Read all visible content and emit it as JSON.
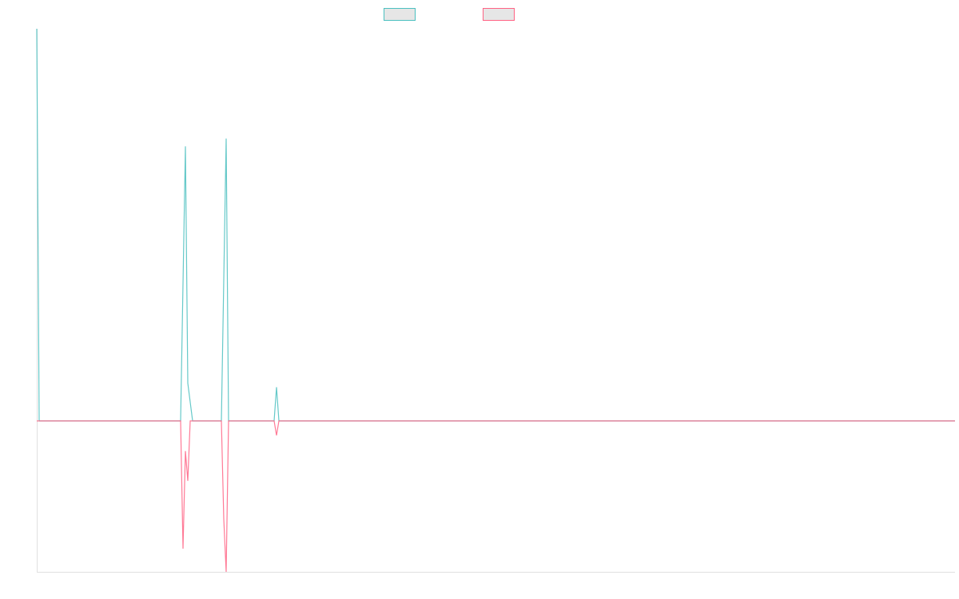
{
  "chart_data": {
    "type": "line",
    "title": "",
    "xlabel": "",
    "ylabel": "",
    "xlim": [
      0,
      383
    ],
    "ylim": [
      -38.5,
      100
    ],
    "grid": false,
    "legend_position": "top",
    "series": [
      {
        "name": "",
        "color": "#4bc0c0",
        "points": [
          [
            0,
            100
          ],
          [
            1,
            0
          ],
          [
            60,
            0
          ],
          [
            62,
            70
          ],
          [
            63,
            9.6
          ],
          [
            65,
            0
          ],
          [
            77,
            0
          ],
          [
            79,
            72
          ],
          [
            80,
            0
          ],
          [
            99,
            0
          ],
          [
            100,
            8.6
          ],
          [
            101,
            0
          ],
          [
            383,
            0
          ]
        ]
      },
      {
        "name": "",
        "color": "#ff6384",
        "points": [
          [
            0,
            0
          ],
          [
            60,
            0
          ],
          [
            61,
            -32.6
          ],
          [
            62,
            -7.7
          ],
          [
            63,
            -15.3
          ],
          [
            64,
            0
          ],
          [
            77,
            0
          ],
          [
            78,
            -25
          ],
          [
            79,
            -38.5
          ],
          [
            80,
            0
          ],
          [
            99,
            0
          ],
          [
            100,
            -3.7
          ],
          [
            101,
            0
          ],
          [
            383,
            0
          ]
        ]
      }
    ]
  }
}
